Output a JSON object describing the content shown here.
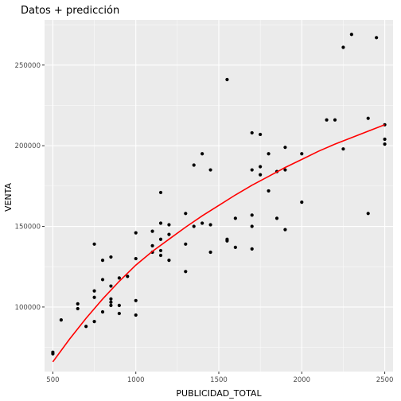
{
  "chart_data": {
    "type": "scatter",
    "title": "Datos + predicción",
    "xlabel": "PUBLICIDAD_TOTAL",
    "ylabel": "VENTA",
    "xlim": [
      450,
      2550
    ],
    "ylim": [
      60000,
      278000
    ],
    "x_ticks": [
      500,
      1000,
      1500,
      2000,
      2500
    ],
    "x_tick_labels": [
      "500",
      "1000",
      "1500",
      "2000",
      "2500"
    ],
    "y_ticks": [
      100000,
      150000,
      200000,
      250000
    ],
    "y_tick_labels": [
      "100000",
      "150000",
      "200000",
      "250000"
    ],
    "grid": true,
    "legend": "none",
    "point_color": "#000000",
    "line_color": "#ff0000",
    "points": [
      [
        500,
        72000
      ],
      [
        500,
        71000
      ],
      [
        550,
        92000
      ],
      [
        650,
        102000
      ],
      [
        650,
        99000
      ],
      [
        700,
        88000
      ],
      [
        750,
        139000
      ],
      [
        750,
        110000
      ],
      [
        750,
        106000
      ],
      [
        750,
        91000
      ],
      [
        800,
        129000
      ],
      [
        800,
        117000
      ],
      [
        800,
        97000
      ],
      [
        850,
        131000
      ],
      [
        850,
        113000
      ],
      [
        850,
        105000
      ],
      [
        850,
        103000
      ],
      [
        850,
        101000
      ],
      [
        900,
        118000
      ],
      [
        900,
        101000
      ],
      [
        900,
        96000
      ],
      [
        950,
        119000
      ],
      [
        1000,
        146000
      ],
      [
        1000,
        130000
      ],
      [
        1000,
        104000
      ],
      [
        1000,
        95000
      ],
      [
        1100,
        147000
      ],
      [
        1100,
        138000
      ],
      [
        1100,
        134000
      ],
      [
        1150,
        171000
      ],
      [
        1150,
        152000
      ],
      [
        1150,
        142000
      ],
      [
        1150,
        135000
      ],
      [
        1150,
        132000
      ],
      [
        1200,
        151000
      ],
      [
        1200,
        145000
      ],
      [
        1200,
        129000
      ],
      [
        1300,
        158000
      ],
      [
        1300,
        139000
      ],
      [
        1300,
        122000
      ],
      [
        1350,
        188000
      ],
      [
        1350,
        150000
      ],
      [
        1400,
        195000
      ],
      [
        1400,
        152000
      ],
      [
        1450,
        185000
      ],
      [
        1450,
        151000
      ],
      [
        1450,
        134000
      ],
      [
        1550,
        241000
      ],
      [
        1550,
        142000
      ],
      [
        1550,
        141000
      ],
      [
        1600,
        155000
      ],
      [
        1600,
        137000
      ],
      [
        1700,
        208000
      ],
      [
        1700,
        185000
      ],
      [
        1700,
        157000
      ],
      [
        1700,
        150000
      ],
      [
        1700,
        136000
      ],
      [
        1750,
        207000
      ],
      [
        1750,
        187000
      ],
      [
        1750,
        182000
      ],
      [
        1800,
        195000
      ],
      [
        1800,
        172000
      ],
      [
        1850,
        184000
      ],
      [
        1850,
        155000
      ],
      [
        1900,
        199000
      ],
      [
        1900,
        185000
      ],
      [
        1900,
        148000
      ],
      [
        2000,
        195000
      ],
      [
        2000,
        165000
      ],
      [
        2150,
        216000
      ],
      [
        2200,
        216000
      ],
      [
        2250,
        261000
      ],
      [
        2250,
        198000
      ],
      [
        2300,
        269000
      ],
      [
        2400,
        217000
      ],
      [
        2400,
        158000
      ],
      [
        2450,
        267000
      ],
      [
        2500,
        213000
      ],
      [
        2500,
        204000
      ],
      [
        2500,
        201000
      ]
    ],
    "prediction": {
      "x": [
        500,
        600,
        700,
        800,
        900,
        1000,
        1100,
        1200,
        1300,
        1400,
        1500,
        1600,
        1700,
        1800,
        1900,
        2000,
        2100,
        2200,
        2300,
        2400,
        2500
      ],
      "y": [
        66000,
        80000,
        93000,
        105000,
        116000,
        126000,
        134500,
        142000,
        149500,
        156500,
        163000,
        169500,
        175500,
        181000,
        186500,
        191500,
        196500,
        201000,
        205000,
        209000,
        213000
      ]
    }
  }
}
